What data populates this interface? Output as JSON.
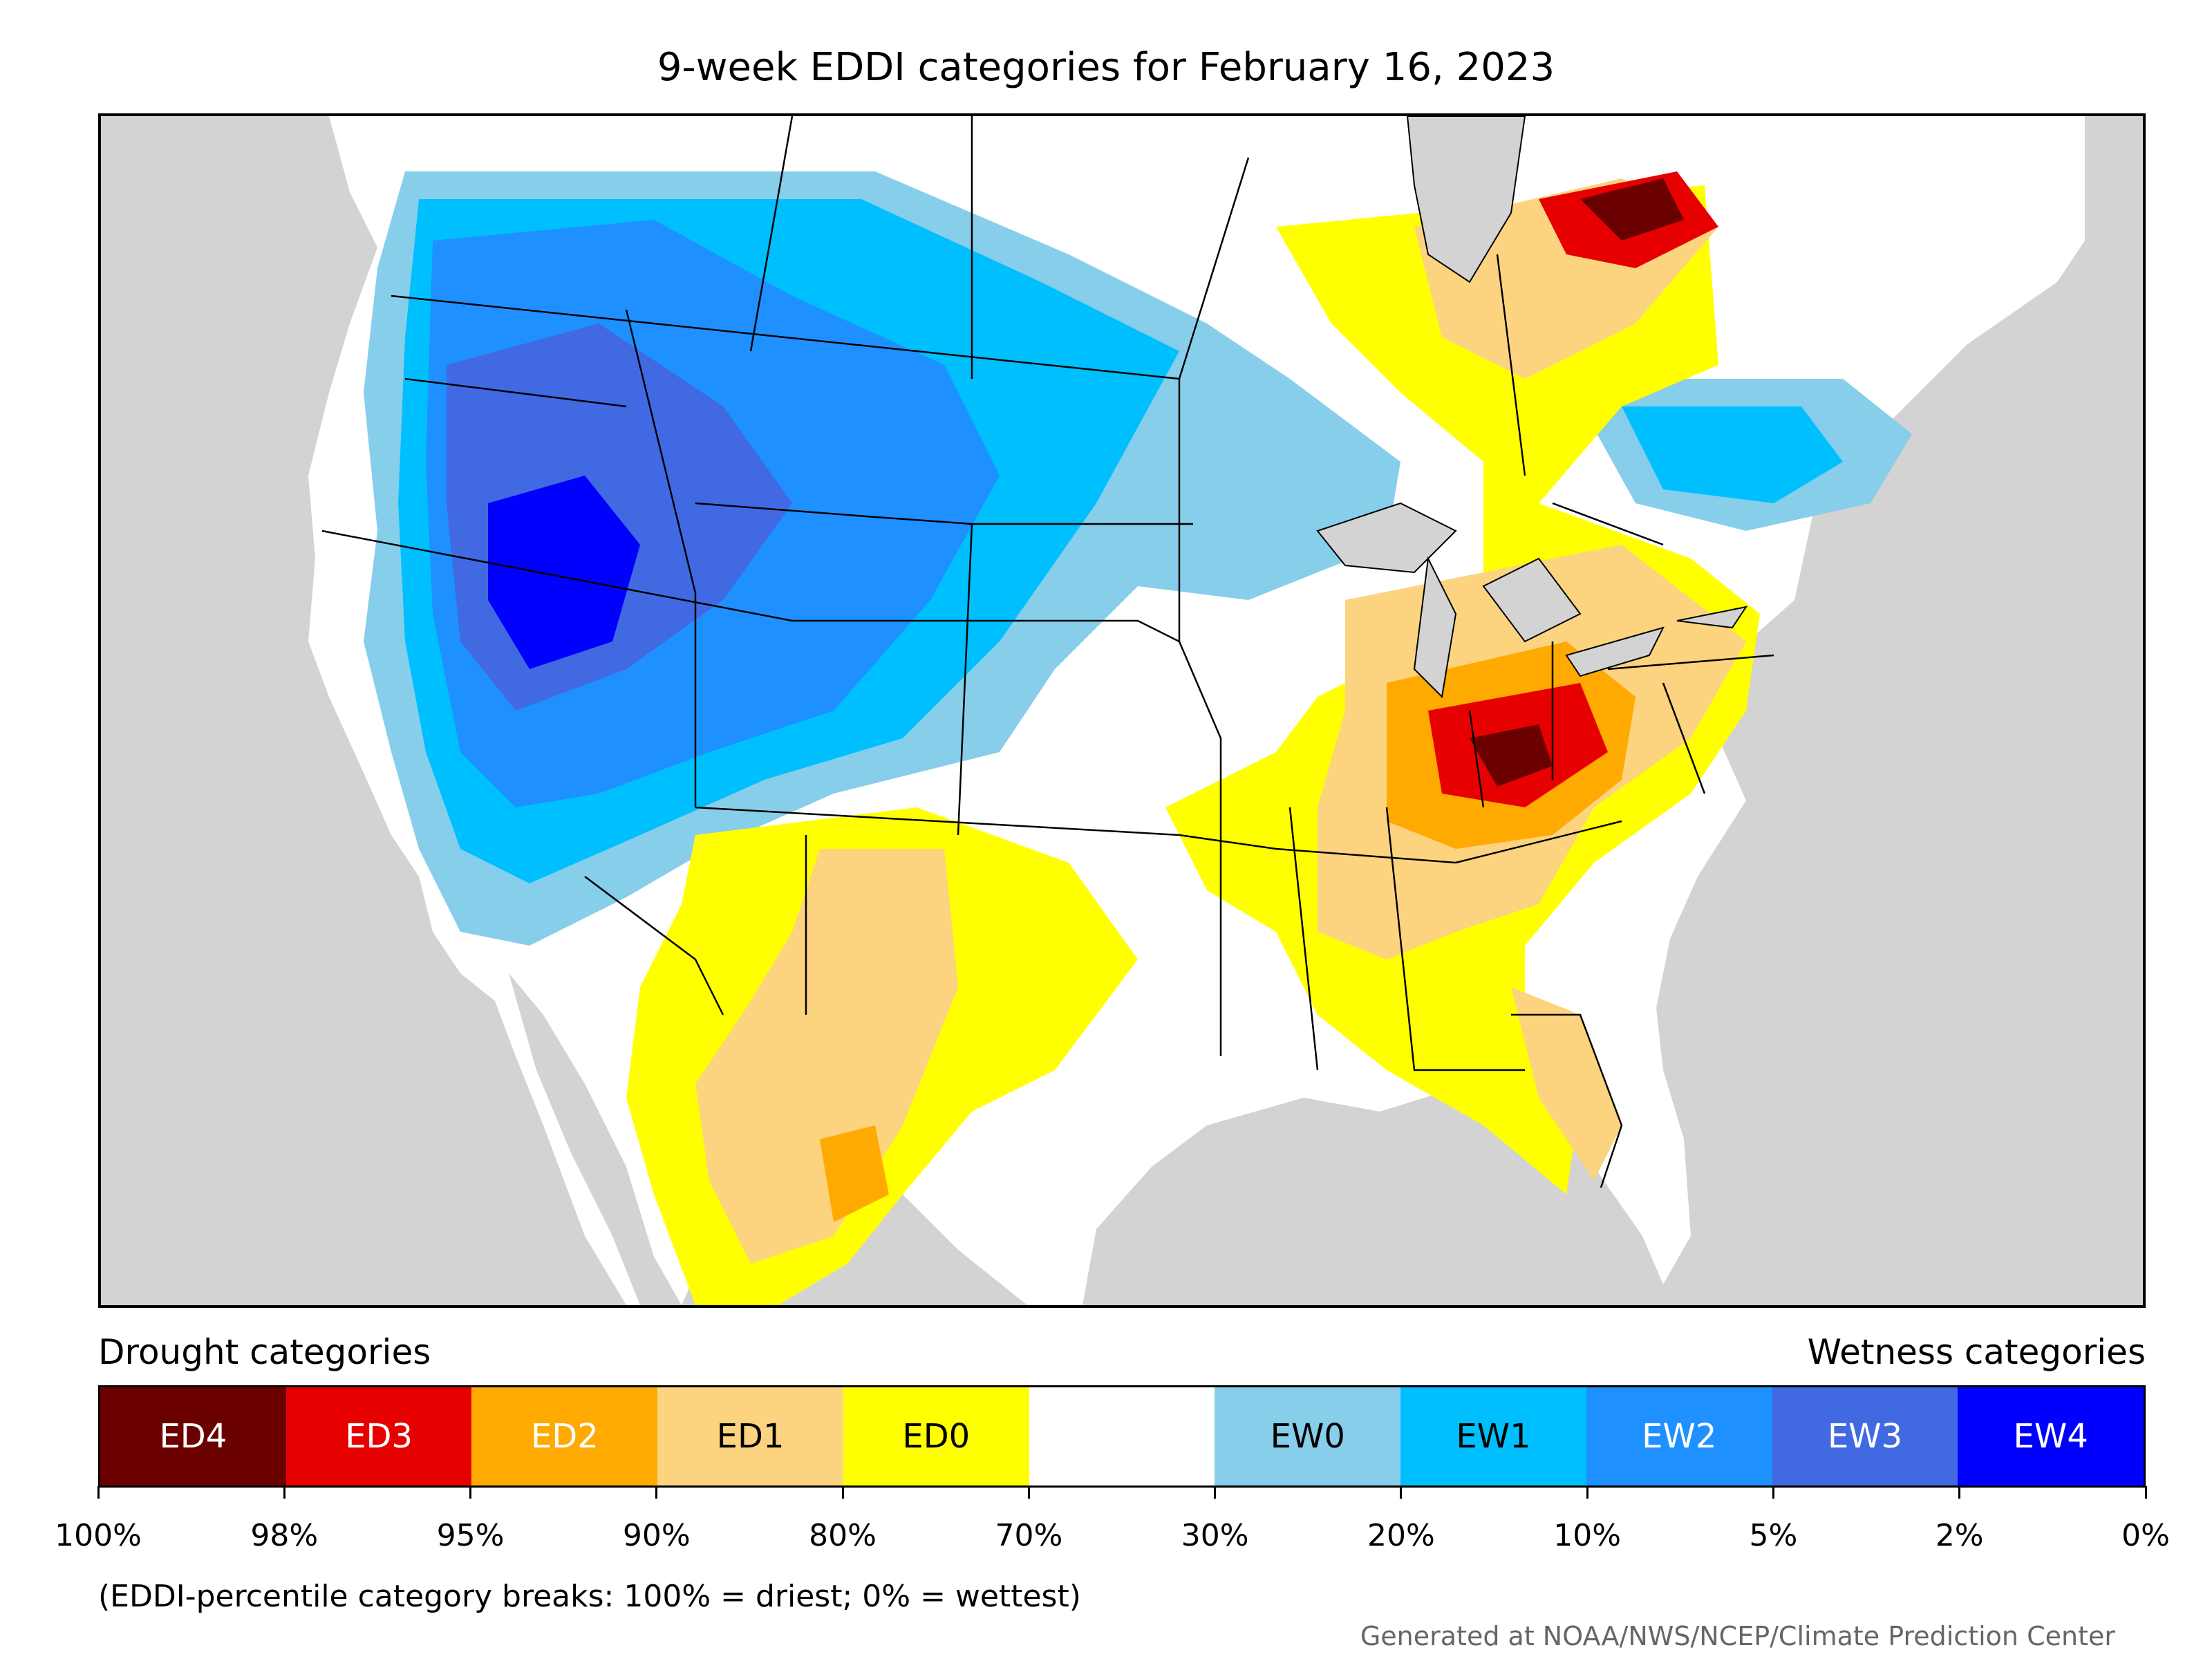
{
  "title": "9-week EDDI categories for February 16, 2023",
  "legend": {
    "drought_label": "Drought categories",
    "wetness_label": "Wetness categories",
    "categories": [
      {
        "code": "ED4",
        "color": "#6b0000",
        "text_color": "#ffffff"
      },
      {
        "code": "ED3",
        "color": "#e60000",
        "text_color": "#ffffff"
      },
      {
        "code": "ED2",
        "color": "#ffaa00",
        "text_color": "#ffffff"
      },
      {
        "code": "ED1",
        "color": "#fcd37f",
        "text_color": "#000000"
      },
      {
        "code": "ED0",
        "color": "#ffff00",
        "text_color": "#000000"
      },
      {
        "code": "",
        "color": "#ffffff",
        "text_color": "#000000"
      },
      {
        "code": "EW0",
        "color": "#87ceeb",
        "text_color": "#000000"
      },
      {
        "code": "EW1",
        "color": "#00bfff",
        "text_color": "#000000"
      },
      {
        "code": "EW2",
        "color": "#1e90ff",
        "text_color": "#ffffff"
      },
      {
        "code": "EW3",
        "color": "#4169e1",
        "text_color": "#ffffff"
      },
      {
        "code": "EW4",
        "color": "#0000ff",
        "text_color": "#ffffff"
      }
    ],
    "ticks": [
      "100%",
      "98%",
      "95%",
      "90%",
      "80%",
      "70%",
      "30%",
      "20%",
      "10%",
      "5%",
      "2%",
      "0%"
    ]
  },
  "note": "(EDDI-percentile category breaks: 100% = driest; 0% = wettest)",
  "credit": "Generated at NOAA/NWS/NCEP/Climate Prediction Center",
  "colors": {
    "background_land": "#ffffff",
    "water_outside": "#d3d3d3",
    "border": "#000000"
  }
}
